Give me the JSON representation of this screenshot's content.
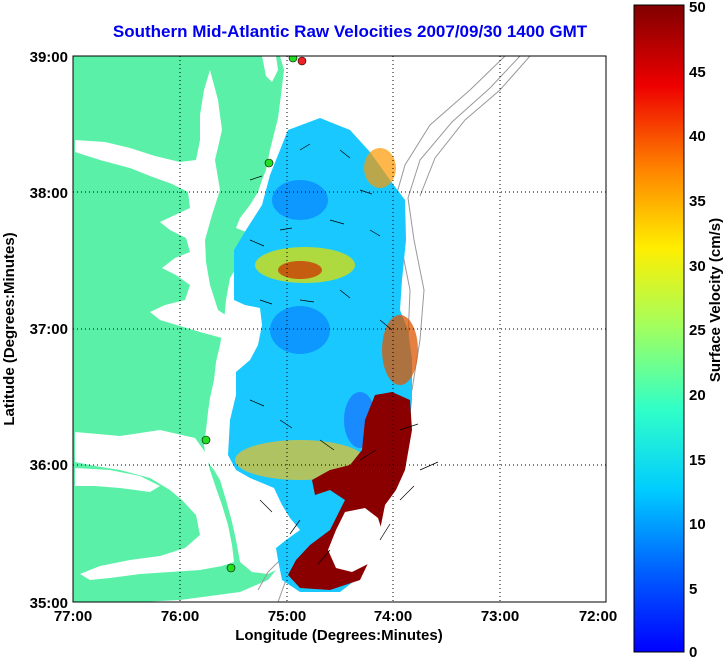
{
  "title": "Southern Mid-Atlantic Raw Velocities 2007/09/30 1400 GMT",
  "x_axis": {
    "label": "Longitude (Degrees:Minutes)",
    "ticks": [
      "77:00",
      "76:00",
      "75:00",
      "74:00",
      "73:00",
      "72:00"
    ]
  },
  "y_axis": {
    "label": "Latitude (Degrees:Minutes)",
    "ticks": [
      "39:00",
      "38:00",
      "37:00",
      "36:00",
      "35:00"
    ]
  },
  "colorbar": {
    "label": "Surface Velocity (cm/s)",
    "ticks": [
      "50",
      "45",
      "40",
      "35",
      "30",
      "25",
      "20",
      "15",
      "10",
      "5",
      "0"
    ],
    "range": [
      0,
      50
    ],
    "colormap": "jet"
  },
  "colors": {
    "land": "#5af0a8",
    "water": "#ffffff",
    "title": "#0000ee",
    "station_green": "#22dd22",
    "station_red": "#ee2222"
  },
  "map": {
    "longitude_range": [
      -77,
      -72
    ],
    "latitude_range": [
      35,
      39
    ],
    "gridlines": "dotted"
  }
}
